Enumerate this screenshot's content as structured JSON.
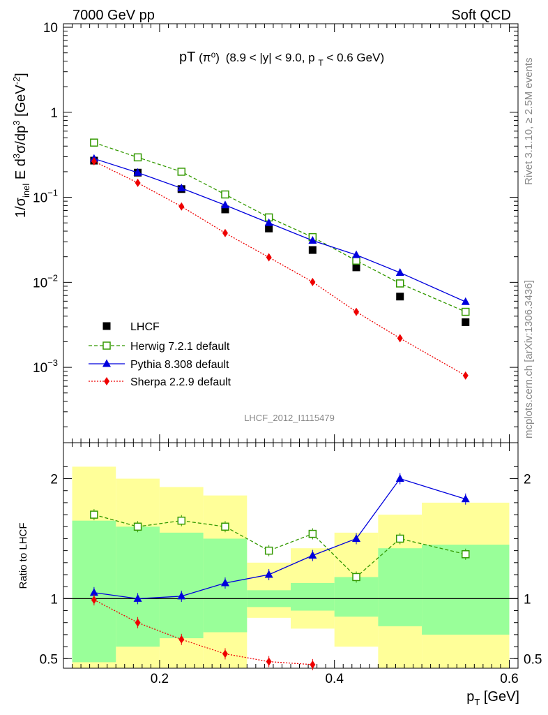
{
  "header": {
    "left": "7000 GeV pp",
    "right": "Soft QCD"
  },
  "side_labels": {
    "rivet": "Rivet 3.1.10, ≥ 2.5M events",
    "mcplots": "mcplots.cern.ch [arXiv:1306.3436]"
  },
  "analysis_id": "LHCF_2012_I1115479",
  "plot_title": {
    "main": "pT",
    "particle": "(π⁰)",
    "cuts": "(8.9 < |y| < 9.0, p",
    "cuts_sub": "T",
    "cuts_end": " < 0.6 GeV)"
  },
  "axes": {
    "ylabel_upper": {
      "pre": "1/σ",
      "sub": "inel",
      "mid": " E d",
      "sup1": "3",
      "mid2": "σ/dp",
      "sup2": "3",
      "unit": " [GeV",
      "sup3": "-2",
      "end": "]"
    },
    "ylabel_lower": "Ratio to LHCF",
    "xlabel": {
      "pre": "p",
      "sub": "T",
      "post": " [GeV]"
    }
  },
  "legend": [
    {
      "key": "lhcf",
      "label": "LHCF"
    },
    {
      "key": "herwig",
      "label": "Herwig 7.2.1 default"
    },
    {
      "key": "pythia",
      "label": "Pythia 8.308 default"
    },
    {
      "key": "sherpa",
      "label": "Sherpa 2.2.9 default"
    }
  ],
  "colors": {
    "herwig": "#339900",
    "pythia": "#0000dd",
    "sherpa": "#ee0000",
    "data": "#000000",
    "band_inner": "#99ff99",
    "band_outer": "#ffff99"
  },
  "chart_data": [
    {
      "type": "scatter",
      "panel": "main",
      "yscale": "log",
      "xlim": [
        0.09,
        0.61
      ],
      "ylim": [
        0.00013,
        11
      ],
      "x_ticks": [
        0.2,
        0.4,
        0.6
      ],
      "y_ticks": [
        {
          "value": 10,
          "label": "10"
        },
        {
          "value": 1,
          "label": "1"
        },
        {
          "value": 0.1,
          "base": "10",
          "exp": "−1"
        },
        {
          "value": 0.01,
          "base": "10",
          "exp": "−2"
        },
        {
          "value": 0.001,
          "base": "10",
          "exp": "−3"
        }
      ],
      "series": [
        {
          "key": "lhcf",
          "name": "LHCF",
          "style": "markers",
          "x": [
            0.125,
            0.175,
            0.225,
            0.275,
            0.325,
            0.375,
            0.425,
            0.475,
            0.55
          ],
          "y": [
            0.27,
            0.195,
            0.125,
            0.072,
            0.043,
            0.024,
            0.015,
            0.0068,
            0.0034
          ]
        },
        {
          "key": "herwig",
          "name": "Herwig 7.2.1 default",
          "style": "dashed-open-square",
          "x": [
            0.125,
            0.175,
            0.225,
            0.275,
            0.325,
            0.375,
            0.425,
            0.475,
            0.55
          ],
          "y": [
            0.44,
            0.295,
            0.2,
            0.108,
            0.058,
            0.034,
            0.018,
            0.0097,
            0.0045
          ]
        },
        {
          "key": "pythia",
          "name": "Pythia 8.308 default",
          "style": "solid-triangle",
          "x": [
            0.125,
            0.175,
            0.225,
            0.275,
            0.325,
            0.375,
            0.425,
            0.475,
            0.55
          ],
          "y": [
            0.285,
            0.195,
            0.128,
            0.081,
            0.05,
            0.031,
            0.021,
            0.013,
            0.0059
          ]
        },
        {
          "key": "sherpa",
          "name": "Sherpa 2.2.9 default",
          "style": "dotted-diamond",
          "x": [
            0.125,
            0.175,
            0.225,
            0.275,
            0.325,
            0.375,
            0.425,
            0.475,
            0.55
          ],
          "y": [
            0.265,
            0.148,
            0.078,
            0.038,
            0.0197,
            0.0101,
            0.0045,
            0.0022,
            0.0008
          ]
        }
      ]
    },
    {
      "type": "line",
      "panel": "ratio",
      "xlim": [
        0.09,
        0.61
      ],
      "ylim": [
        0.42,
        2.3
      ],
      "y_ticks": [
        0.5,
        1,
        2
      ],
      "x_ticks": [
        0.2,
        0.4,
        0.6
      ],
      "reference_line": 1,
      "bins": [
        0.1,
        0.15,
        0.2,
        0.25,
        0.3,
        0.35,
        0.4,
        0.45,
        0.5,
        0.6
      ],
      "bands": {
        "inner_low": [
          0.47,
          0.6,
          0.67,
          0.72,
          0.93,
          0.9,
          0.85,
          0.77,
          0.7
        ],
        "inner_high": [
          1.65,
          1.6,
          1.55,
          1.5,
          1.07,
          1.13,
          1.18,
          1.42,
          1.45
        ],
        "outer_low": [
          0.4,
          0.4,
          0.4,
          0.4,
          0.84,
          0.75,
          0.6,
          0.4,
          0.4
        ],
        "outer_high": [
          2.1,
          2.0,
          1.93,
          1.86,
          1.3,
          1.42,
          1.55,
          1.7,
          1.8
        ]
      },
      "series": [
        {
          "key": "herwig",
          "name": "Herwig 7.2.1 default",
          "x": [
            0.125,
            0.175,
            0.225,
            0.275,
            0.325,
            0.375,
            0.425,
            0.475,
            0.55
          ],
          "y": [
            1.7,
            1.6,
            1.65,
            1.6,
            1.4,
            1.54,
            1.18,
            1.5,
            1.37
          ]
        },
        {
          "key": "pythia",
          "name": "Pythia 8.308 default",
          "x": [
            0.125,
            0.175,
            0.225,
            0.275,
            0.325,
            0.375,
            0.425,
            0.475,
            0.55
          ],
          "y": [
            1.05,
            1.0,
            1.02,
            1.13,
            1.2,
            1.36,
            1.5,
            2.0,
            1.83
          ]
        },
        {
          "key": "sherpa",
          "name": "Sherpa 2.2.9 default",
          "x": [
            0.125,
            0.175,
            0.225,
            0.275,
            0.325,
            0.375
          ],
          "y": [
            0.99,
            0.8,
            0.66,
            0.54,
            0.475,
            0.45
          ]
        }
      ]
    }
  ]
}
